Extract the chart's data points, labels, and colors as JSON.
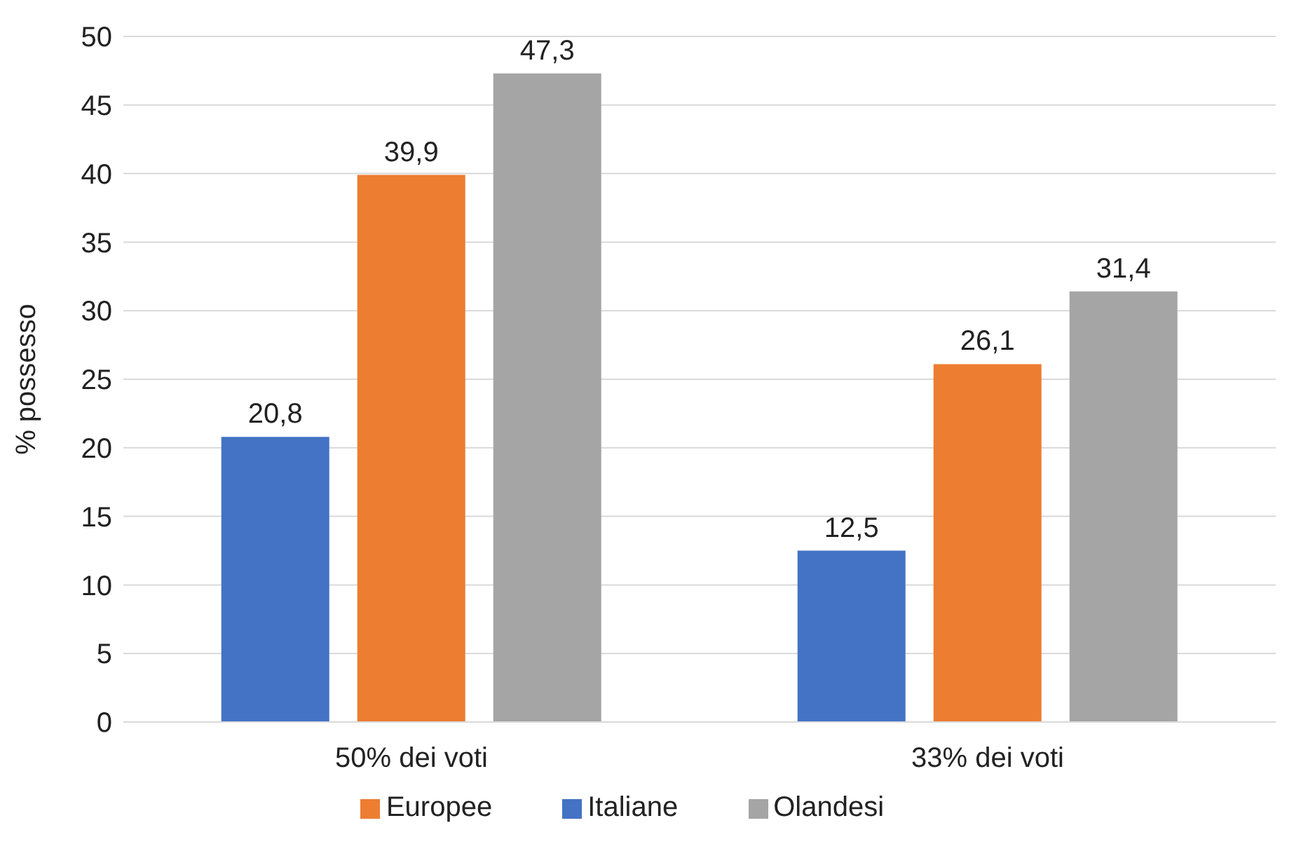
{
  "chart_data": {
    "type": "bar",
    "ylabel": "% possesso",
    "categories": [
      "50% dei voti",
      "33% dei voti"
    ],
    "series": [
      {
        "name": "Italiane",
        "color": "#4472c4",
        "values": [
          20.8,
          12.5
        ],
        "value_labels": [
          "20,8",
          "12,5"
        ]
      },
      {
        "name": "Europee",
        "color": "#ed7d31",
        "values": [
          39.9,
          26.1
        ],
        "value_labels": [
          "39,9",
          "26,1"
        ]
      },
      {
        "name": "Olandesi",
        "color": "#a5a5a5",
        "values": [
          47.3,
          31.4
        ],
        "value_labels": [
          "47,3",
          "31,4"
        ]
      }
    ],
    "ylim": [
      0,
      50
    ],
    "yticks": [
      0,
      5,
      10,
      15,
      20,
      25,
      30,
      35,
      40,
      45,
      50
    ],
    "grid": "y",
    "legend": "bottom"
  }
}
